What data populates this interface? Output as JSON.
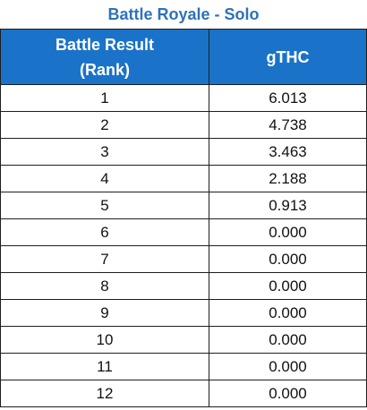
{
  "title": "Battle Royale - Solo",
  "table": {
    "headers": {
      "rank_line1": "Battle Result",
      "rank_line2": "(Rank)",
      "gthc": "gTHC"
    },
    "rows": [
      {
        "rank": "1",
        "gthc": "6.013"
      },
      {
        "rank": "2",
        "gthc": "4.738"
      },
      {
        "rank": "3",
        "gthc": "3.463"
      },
      {
        "rank": "4",
        "gthc": "2.188"
      },
      {
        "rank": "5",
        "gthc": "0.913"
      },
      {
        "rank": "6",
        "gthc": "0.000"
      },
      {
        "rank": "7",
        "gthc": "0.000"
      },
      {
        "rank": "8",
        "gthc": "0.000"
      },
      {
        "rank": "9",
        "gthc": "0.000"
      },
      {
        "rank": "10",
        "gthc": "0.000"
      },
      {
        "rank": "11",
        "gthc": "0.000"
      },
      {
        "rank": "12",
        "gthc": "0.000"
      }
    ]
  },
  "colors": {
    "title_text": "#2e72b9",
    "header_background": "#1a73c9",
    "header_text": "#ffffff",
    "grid_lines": "#1e1e1e"
  }
}
